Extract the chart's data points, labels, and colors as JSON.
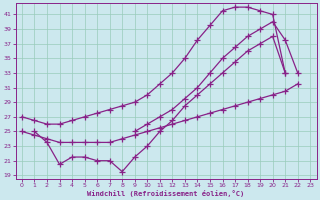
{
  "xlabel": "Windchill (Refroidissement éolien,°C)",
  "bg_color": "#cce8ee",
  "grid_color": "#99ccbb",
  "line_color": "#882288",
  "xlim": [
    -0.5,
    23.5
  ],
  "ylim": [
    18.5,
    42.5
  ],
  "xticks": [
    0,
    1,
    2,
    3,
    4,
    5,
    6,
    7,
    8,
    9,
    10,
    11,
    12,
    13,
    14,
    15,
    16,
    17,
    18,
    19,
    20,
    21,
    22,
    23
  ],
  "yticks": [
    19,
    21,
    23,
    25,
    27,
    29,
    31,
    33,
    35,
    37,
    39,
    41
  ],
  "line_upper_x": [
    0,
    1,
    2,
    3,
    4,
    5,
    6,
    7,
    8,
    9,
    10,
    11,
    12,
    13,
    14,
    15,
    16,
    17,
    18,
    19,
    20,
    21
  ],
  "line_upper_y": [
    27,
    26.5,
    26,
    26,
    26.5,
    27,
    27.5,
    28,
    28.5,
    29,
    30,
    31.5,
    33,
    35,
    37.5,
    39.5,
    41.5,
    42,
    42,
    41.5,
    41,
    33
  ],
  "line_mid_x": [
    9,
    10,
    11,
    12,
    13,
    14,
    15,
    16,
    17,
    18,
    19,
    20,
    21,
    22
  ],
  "line_mid_y": [
    25,
    26,
    27,
    28,
    29.5,
    31,
    33,
    35,
    36.5,
    38,
    39,
    40,
    37.5,
    33
  ],
  "line_diag_x": [
    0,
    1,
    2,
    3,
    4,
    5,
    6,
    7,
    8,
    9,
    10,
    11,
    12,
    13,
    14,
    15,
    16,
    17,
    18,
    19,
    20,
    21,
    22
  ],
  "line_diag_y": [
    25,
    24.5,
    24,
    23.5,
    23.5,
    23.5,
    23.5,
    23.5,
    24,
    24.5,
    25,
    25.5,
    26,
    26.5,
    27,
    27.5,
    28,
    28.5,
    29,
    29.5,
    30,
    30.5,
    31.5
  ],
  "line_zigzag_x": [
    1,
    2,
    3,
    4,
    5,
    6,
    7,
    8,
    9,
    10,
    11,
    12,
    13,
    14,
    15,
    16,
    17,
    18,
    19,
    20,
    21
  ],
  "line_zigzag_y": [
    25,
    23.5,
    20.5,
    21.5,
    21.5,
    21,
    21,
    19.5,
    21.5,
    23,
    25,
    26.5,
    28.5,
    30,
    31.5,
    33,
    34.5,
    36,
    37,
    38,
    33
  ]
}
